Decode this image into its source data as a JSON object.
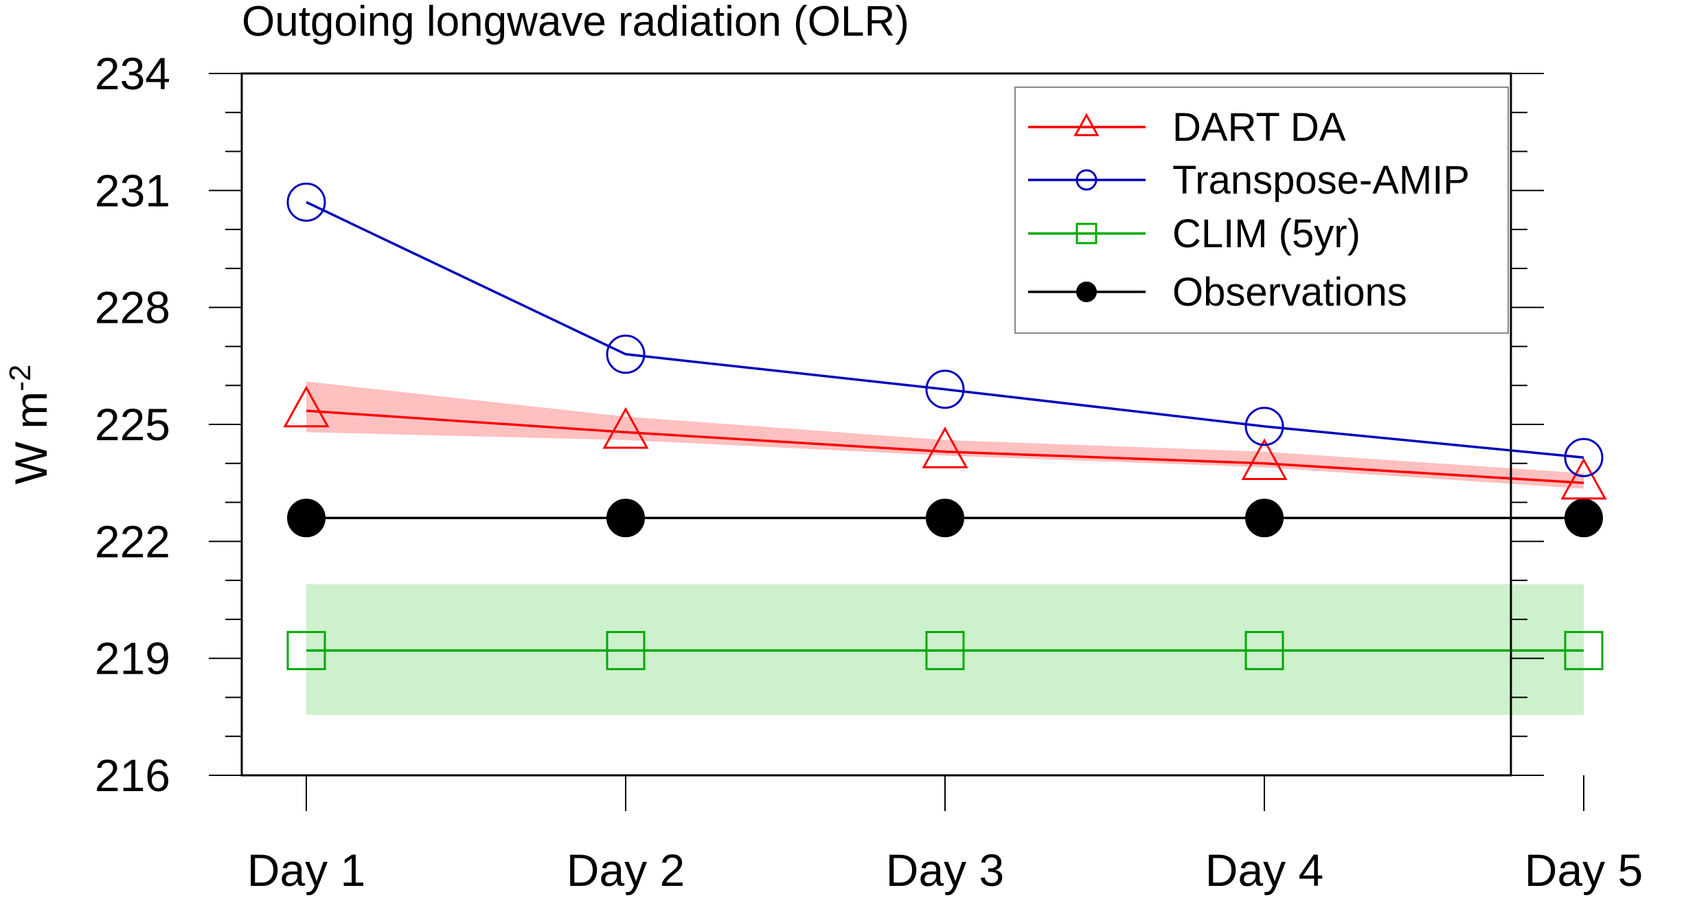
{
  "chart_data": {
    "type": "line",
    "title": "Outgoing longwave radiation (OLR)",
    "xlabel": "",
    "ylabel": "W m",
    "ylabel_superscript": "-2",
    "categories": [
      "Day 1",
      "Day 2",
      "Day 3",
      "Day 4",
      "Day 5"
    ],
    "ylim": [
      216,
      234
    ],
    "yticks": [
      216,
      219,
      222,
      225,
      228,
      231,
      234
    ],
    "ytick_labels": [
      "216",
      "219",
      "222",
      "225",
      "228",
      "231",
      "234"
    ],
    "y_minor_step": 1,
    "legend_position": "top-right",
    "series": [
      {
        "name": "DART DA",
        "color": "#ff0000",
        "marker": "triangle",
        "values": [
          225.35,
          224.8,
          224.3,
          224.0,
          223.5
        ],
        "band": {
          "lower": [
            224.8,
            224.6,
            224.2,
            223.9,
            223.35
          ],
          "upper": [
            226.1,
            225.2,
            224.6,
            224.3,
            223.75
          ],
          "color": "#ffc0c0"
        }
      },
      {
        "name": "Transpose-AMIP",
        "color": "#0000bb",
        "marker": "circle",
        "values": [
          230.7,
          226.8,
          225.9,
          224.95,
          224.15
        ]
      },
      {
        "name": "CLIM (5yr)",
        "color": "#00aa00",
        "marker": "square",
        "values": [
          219.2,
          219.2,
          219.2,
          219.2,
          219.2
        ],
        "band": {
          "lower": [
            217.55,
            217.55,
            217.55,
            217.55,
            217.55
          ],
          "upper": [
            220.9,
            220.9,
            220.9,
            220.9,
            220.9
          ],
          "color": "#cdf0cd"
        }
      },
      {
        "name": "Observations",
        "color": "#000000",
        "marker": "filled-circle",
        "values": [
          222.6,
          222.6,
          222.6,
          222.6,
          222.6
        ]
      }
    ]
  }
}
